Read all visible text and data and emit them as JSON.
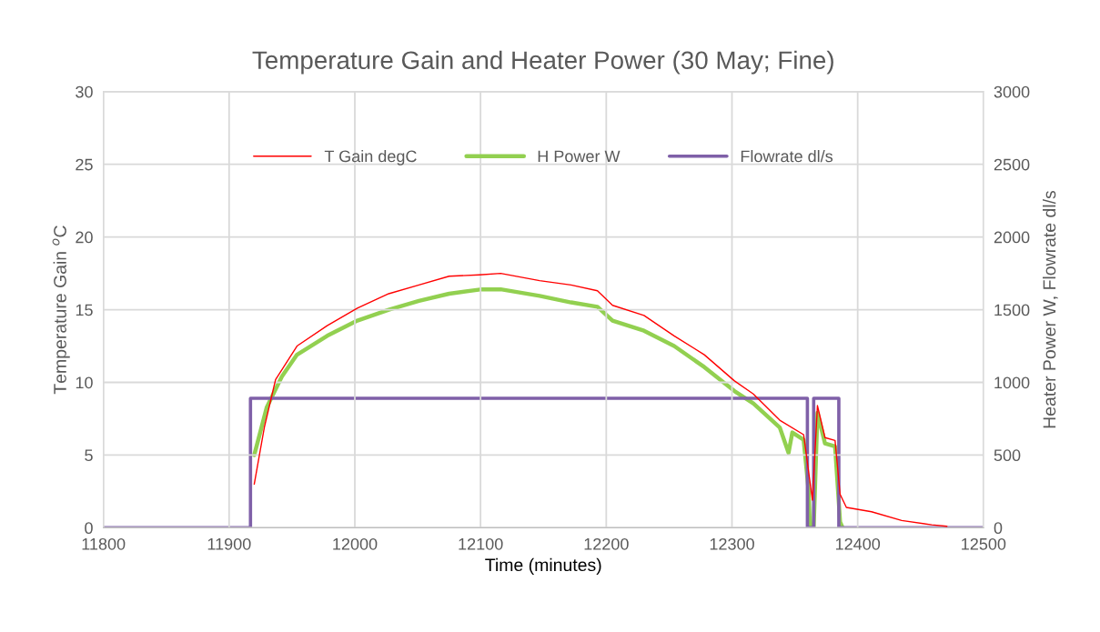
{
  "chart_data": {
    "type": "line",
    "title": "Temperature Gain and Heater Power (30 May; Fine)",
    "xlabel": "Time (minutes)",
    "ylabel": "Temperature Gain $^{o}$C",
    "y2label": "Heater Power W, Flowrate dl/s",
    "xlim": [
      11800,
      12500
    ],
    "xticks": [
      11800,
      11900,
      12000,
      12100,
      12200,
      12300,
      12400,
      12500
    ],
    "ylim": [
      0,
      30
    ],
    "yticks": [
      0,
      5,
      10,
      15,
      20,
      25,
      30
    ],
    "y2lim": [
      0,
      3000
    ],
    "y2ticks": [
      0,
      500,
      1000,
      1500,
      2000,
      2500,
      3000
    ],
    "grid": true,
    "legend": "top",
    "marker": "none",
    "line_style": "solid",
    "series": [
      {
        "name": "T Gain degC",
        "color": "#ff0000",
        "x": [
          11920,
          11928,
          11937,
          11954,
          11978,
          12002,
          12027,
          12051,
          12075,
          12099,
          12116,
          12147,
          12172,
          12193,
          12205,
          12230,
          12254,
          12278,
          12302,
          12317,
          12338,
          12357,
          12364,
          12368,
          12374,
          12382,
          12386,
          12391,
          12411,
          12435,
          12459,
          12471
        ],
        "values": [
          3,
          6.9,
          10.2,
          12.5,
          13.9,
          15.1,
          16.1,
          16.7,
          17.3,
          17.4,
          17.5,
          17.0,
          16.7,
          16.3,
          15.3,
          14.6,
          13.2,
          11.9,
          10.1,
          9.2,
          7.4,
          6.4,
          1.9,
          8.4,
          6.2,
          6.0,
          2.3,
          1.4,
          1.1,
          0.5,
          0.2,
          0.1
        ]
      },
      {
        "name": "H Power W",
        "color": "#92d050",
        "axis": "y2",
        "x": [
          11920,
          11930,
          11942,
          11954,
          11978,
          12002,
          12027,
          12051,
          12075,
          12101,
          12116,
          12147,
          12172,
          12193,
          12205,
          12230,
          12254,
          12278,
          12302,
          12317,
          12338,
          12345,
          12348,
          12357,
          12361,
          12362,
          12365,
          12368,
          12374,
          12382,
          12386,
          12388
        ],
        "values": [
          500,
          830,
          1040,
          1190,
          1320,
          1425,
          1500,
          1560,
          1610,
          1640,
          1640,
          1595,
          1550,
          1520,
          1425,
          1355,
          1250,
          1105,
          940,
          855,
          690,
          515,
          655,
          605,
          250,
          0,
          0,
          790,
          580,
          560,
          40,
          0
        ]
      },
      {
        "name": "Flowrate dl/s",
        "color": "#7f60a8",
        "axis": "y2",
        "x": [
          11800,
          11917,
          11917,
          12360,
          12360,
          12365,
          12365,
          12385,
          12385,
          12500
        ],
        "values": [
          0,
          0,
          890,
          890,
          0,
          0,
          890,
          890,
          0,
          0
        ]
      }
    ]
  }
}
